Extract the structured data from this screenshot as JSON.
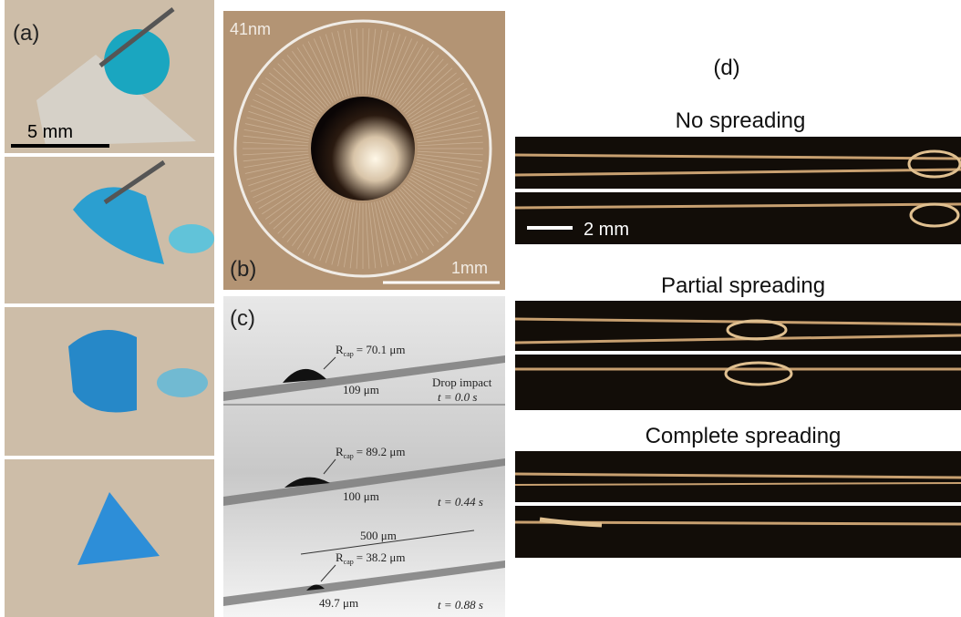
{
  "panel_a": {
    "label": "(a)",
    "scale_bar": "5 mm"
  },
  "panel_b": {
    "label": "(b)",
    "thickness": "41nm",
    "scale_bar": "1mm"
  },
  "panel_c": {
    "label": "(c)",
    "frames": [
      {
        "r_symbol": "R",
        "r_subscript": "cap",
        "r_value": "= 70.1 μm",
        "length": "109 μm",
        "event": "Drop impact",
        "time": "t = 0.0 s"
      },
      {
        "r_symbol": "R",
        "r_subscript": "cap",
        "r_value": "= 89.2 μm",
        "length": "100 μm",
        "time": "t = 0.44 s"
      },
      {
        "r_symbol": "R",
        "r_subscript": "cap",
        "r_value": "= 38.2 μm",
        "length": "49.7 μm",
        "fiber": "500 μm",
        "time": "t = 0.88 s"
      }
    ]
  },
  "panel_d": {
    "label": "(d)",
    "scale_bar": "2 mm",
    "rows": [
      {
        "title": "No spreading"
      },
      {
        "title": "Partial spreading"
      },
      {
        "title": "Complete spreading"
      }
    ]
  }
}
